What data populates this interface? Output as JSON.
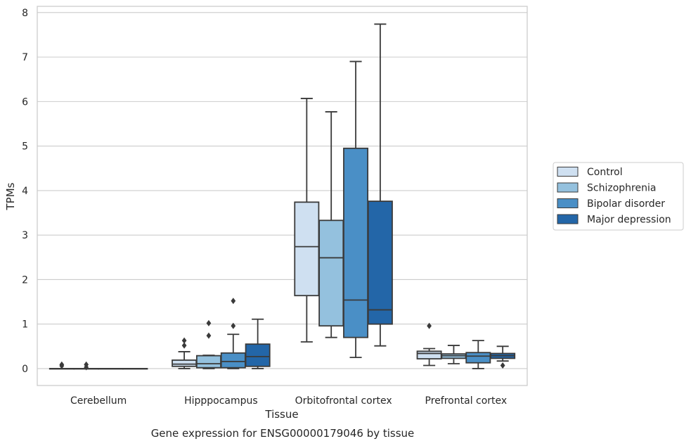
{
  "chart_data": {
    "type": "box",
    "title": "",
    "caption": "Gene expression for ENSG00000179046 by tissue",
    "xlabel": "Tissue",
    "ylabel": "TPMs",
    "ylim": [
      -0.38,
      8.14
    ],
    "yticks": [
      "0",
      "1",
      "2",
      "3",
      "4",
      "5",
      "6",
      "7",
      "8"
    ],
    "grid": "horizontal",
    "legend_position": "right",
    "categories": [
      "Cerebellum",
      "Hipppocampus",
      "Orbitofrontal cortex",
      "Prefrontal cortex"
    ],
    "series": [
      {
        "name": "Control",
        "color": "#cfe0f1",
        "boxes": [
          {
            "min": 0.0,
            "q1": 0.0,
            "median": 0.0,
            "q3": 0.0,
            "max": 0.0,
            "outliers": [
              0.09,
              0.06
            ]
          },
          {
            "min": 0.0,
            "q1": 0.05,
            "median": 0.1,
            "q3": 0.19,
            "max": 0.38,
            "outliers": [
              0.63,
              0.52
            ]
          },
          {
            "min": 0.6,
            "q1": 1.64,
            "median": 2.74,
            "q3": 3.74,
            "max": 6.07,
            "outliers": []
          },
          {
            "min": 0.07,
            "q1": 0.22,
            "median": 0.34,
            "q3": 0.39,
            "max": 0.45,
            "outliers": [
              0.96
            ]
          }
        ]
      },
      {
        "name": "Schizophrenia",
        "color": "#94c1de",
        "boxes": [
          {
            "min": 0.0,
            "q1": 0.0,
            "median": 0.0,
            "q3": 0.0,
            "max": 0.0,
            "outliers": [
              0.09,
              0.03
            ]
          },
          {
            "min": 0.0,
            "q1": 0.02,
            "median": 0.11,
            "q3": 0.29,
            "max": 0.3,
            "outliers": [
              1.02,
              0.74
            ]
          },
          {
            "min": 0.7,
            "q1": 0.96,
            "median": 2.49,
            "q3": 3.33,
            "max": 5.77,
            "outliers": []
          },
          {
            "min": 0.11,
            "q1": 0.23,
            "median": 0.29,
            "q3": 0.33,
            "max": 0.52,
            "outliers": []
          }
        ]
      },
      {
        "name": "Bipolar disorder",
        "color": "#4a8fc6",
        "boxes": [
          {
            "min": 0.0,
            "q1": 0.0,
            "median": 0.0,
            "q3": 0.0,
            "max": 0.0,
            "outliers": []
          },
          {
            "min": 0.0,
            "q1": 0.02,
            "median": 0.16,
            "q3": 0.35,
            "max": 0.77,
            "outliers": [
              1.52,
              0.96
            ]
          },
          {
            "min": 0.25,
            "q1": 0.7,
            "median": 1.54,
            "q3": 4.95,
            "max": 6.9,
            "outliers": []
          },
          {
            "min": 0.0,
            "q1": 0.13,
            "median": 0.28,
            "q3": 0.36,
            "max": 0.63,
            "outliers": []
          }
        ]
      },
      {
        "name": "Major depression",
        "color": "#2366a8",
        "boxes": [
          {
            "min": 0.0,
            "q1": 0.0,
            "median": 0.0,
            "q3": 0.0,
            "max": 0.0,
            "outliers": []
          },
          {
            "min": 0.0,
            "q1": 0.05,
            "median": 0.27,
            "q3": 0.55,
            "max": 1.11,
            "outliers": []
          },
          {
            "min": 0.51,
            "q1": 1.0,
            "median": 1.32,
            "q3": 3.76,
            "max": 7.74,
            "outliers": []
          },
          {
            "min": 0.17,
            "q1": 0.23,
            "median": 0.29,
            "q3": 0.34,
            "max": 0.5,
            "outliers": [
              0.07
            ]
          }
        ]
      }
    ]
  }
}
